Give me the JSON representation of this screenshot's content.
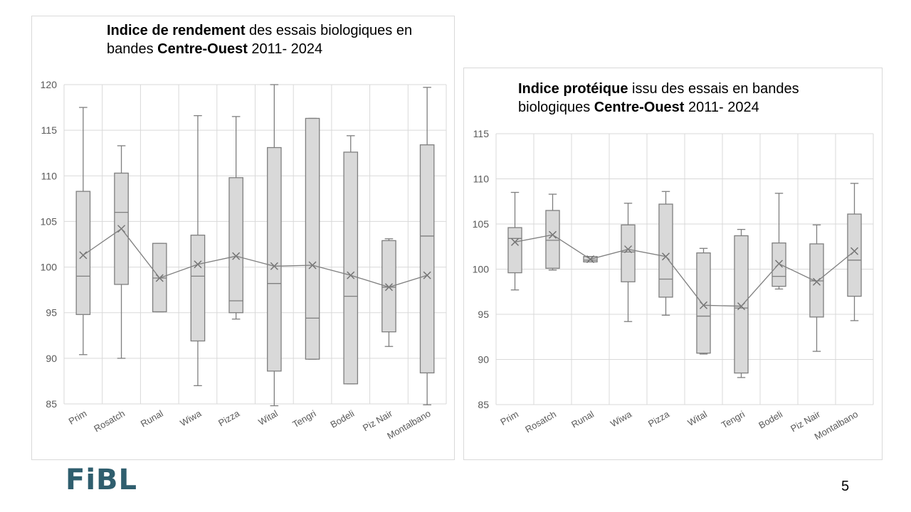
{
  "slide": {
    "logo_text": "FiBL",
    "page_number": "5",
    "colors": {
      "box_fill": "#d9d9d9",
      "box_stroke": "#7f7f7f",
      "grid": "#d9d9d9",
      "axis_text": "#595959"
    }
  },
  "chart_data": [
    {
      "type": "boxplot",
      "title_parts": [
        {
          "text": "Indice de rendement",
          "bold": true
        },
        {
          "text": " des essais biologiques en bandes ",
          "bold": false
        },
        {
          "text": "Centre-Ouest",
          "bold": true
        },
        {
          "text": " 2011- 2024",
          "bold": false
        }
      ],
      "categories": [
        "Prim",
        "Rosatch",
        "Runal",
        "Wiwa",
        "Pizza",
        "Wital",
        "Tengri",
        "Bodeli",
        "Piz Nair",
        "Montalbano"
      ],
      "ylim": [
        85,
        120
      ],
      "yticks": [
        85,
        90,
        95,
        100,
        105,
        110,
        115,
        120
      ],
      "grid": true,
      "boxes": [
        {
          "min": 90.4,
          "q1": 94.8,
          "median": 99.0,
          "q3": 108.3,
          "max": 117.5,
          "mean": 101.3
        },
        {
          "min": 90.0,
          "q1": 98.1,
          "median": 106.0,
          "q3": 110.3,
          "max": 113.3,
          "mean": 104.2
        },
        {
          "min": 95.1,
          "q1": 95.1,
          "median": 98.8,
          "q3": 102.6,
          "max": 102.6,
          "mean": 98.8
        },
        {
          "min": 87.0,
          "q1": 91.9,
          "median": 99.0,
          "q3": 103.5,
          "max": 116.6,
          "mean": 100.3
        },
        {
          "min": 94.3,
          "q1": 95.0,
          "median": 96.3,
          "q3": 109.8,
          "max": 116.5,
          "mean": 101.2
        },
        {
          "min": 84.8,
          "q1": 88.6,
          "median": 98.2,
          "q3": 113.1,
          "max": 120.0,
          "mean": 100.1
        },
        {
          "min": 89.9,
          "q1": 89.9,
          "median": 94.4,
          "q3": 116.3,
          "max": 116.3,
          "mean": 100.2
        },
        {
          "min": 87.2,
          "q1": 87.2,
          "median": 96.8,
          "q3": 112.6,
          "max": 114.4,
          "mean": 99.1
        },
        {
          "min": 91.3,
          "q1": 92.9,
          "median": 97.8,
          "q3": 102.9,
          "max": 103.1,
          "mean": 97.8
        },
        {
          "min": 84.9,
          "q1": 88.4,
          "median": 103.4,
          "q3": 113.4,
          "max": 119.7,
          "mean": 99.1
        }
      ]
    },
    {
      "type": "boxplot",
      "title_parts": [
        {
          "text": "Indice protéique",
          "bold": true
        },
        {
          "text": " issu des essais en bandes biologiques ",
          "bold": false
        },
        {
          "text": "Centre-Ouest",
          "bold": true
        },
        {
          "text": " 2011- 2024",
          "bold": false
        }
      ],
      "categories": [
        "Prim",
        "Rosatch",
        "Runal",
        "Wiwa",
        "Pizza",
        "Wital",
        "Tengri",
        "Bodeli",
        "Piz Nair",
        "Montalbano"
      ],
      "ylim": [
        85,
        115
      ],
      "yticks": [
        85,
        90,
        95,
        100,
        105,
        110,
        115
      ],
      "grid": true,
      "boxes": [
        {
          "min": 97.7,
          "q1": 99.6,
          "median": 103.4,
          "q3": 104.6,
          "max": 108.5,
          "mean": 103.0
        },
        {
          "min": 99.9,
          "q1": 100.1,
          "median": 103.2,
          "q3": 106.5,
          "max": 108.3,
          "mean": 103.8
        },
        {
          "min": 100.8,
          "q1": 100.8,
          "median": 101.0,
          "q3": 101.4,
          "max": 101.4,
          "mean": 101.1
        },
        {
          "min": 94.2,
          "q1": 98.6,
          "median": 101.9,
          "q3": 104.9,
          "max": 107.3,
          "mean": 102.2
        },
        {
          "min": 94.9,
          "q1": 96.9,
          "median": 98.9,
          "q3": 107.2,
          "max": 108.6,
          "mean": 101.4
        },
        {
          "min": 90.6,
          "q1": 90.7,
          "median": 94.8,
          "q3": 101.8,
          "max": 102.3,
          "mean": 96.0
        },
        {
          "min": 88.0,
          "q1": 88.5,
          "median": 95.7,
          "q3": 103.7,
          "max": 104.4,
          "mean": 95.9
        },
        {
          "min": 97.8,
          "q1": 98.1,
          "median": 99.2,
          "q3": 102.9,
          "max": 108.4,
          "mean": 100.6
        },
        {
          "min": 90.9,
          "q1": 94.7,
          "median": 98.7,
          "q3": 102.8,
          "max": 104.9,
          "mean": 98.6
        },
        {
          "min": 94.3,
          "q1": 97.0,
          "median": 101.0,
          "q3": 106.1,
          "max": 109.5,
          "mean": 102.0
        }
      ]
    }
  ]
}
